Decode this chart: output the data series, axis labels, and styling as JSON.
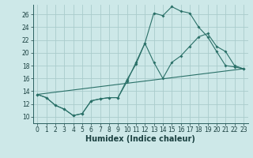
{
  "xlabel": "Humidex (Indice chaleur)",
  "bg_color": "#cde8e8",
  "grid_color": "#aacccc",
  "line_color": "#2a7068",
  "xlim": [
    -0.5,
    23.5
  ],
  "ylim": [
    9.0,
    27.5
  ],
  "xticks": [
    0,
    1,
    2,
    3,
    4,
    5,
    6,
    7,
    8,
    9,
    10,
    11,
    12,
    13,
    14,
    15,
    16,
    17,
    18,
    19,
    20,
    21,
    22,
    23
  ],
  "yticks": [
    10,
    12,
    14,
    16,
    18,
    20,
    22,
    24,
    26
  ],
  "line1_x": [
    0,
    1,
    2,
    3,
    4,
    5,
    6,
    7,
    8,
    9,
    10,
    11,
    12,
    13,
    14,
    15,
    16,
    17,
    18,
    19,
    20,
    21,
    22,
    23
  ],
  "line1_y": [
    13.5,
    13.0,
    11.8,
    11.2,
    10.2,
    10.5,
    12.5,
    12.8,
    13.0,
    13.0,
    15.5,
    18.5,
    21.5,
    26.2,
    25.8,
    27.2,
    26.5,
    26.2,
    24.0,
    22.5,
    20.2,
    18.0,
    17.8,
    17.5
  ],
  "line2_x": [
    0,
    1,
    2,
    3,
    4,
    5,
    6,
    7,
    8,
    9,
    10,
    11,
    12,
    13,
    14,
    15,
    16,
    17,
    18,
    19,
    20,
    21,
    22,
    23
  ],
  "line2_y": [
    13.5,
    13.0,
    11.8,
    11.2,
    10.2,
    10.5,
    12.5,
    12.8,
    13.0,
    13.0,
    15.8,
    18.2,
    21.5,
    18.5,
    16.0,
    18.5,
    19.5,
    21.0,
    22.5,
    23.0,
    21.0,
    20.2,
    18.0,
    17.5
  ],
  "line3_x": [
    0,
    23
  ],
  "line3_y": [
    13.5,
    17.5
  ],
  "marker_size": 2.0,
  "tick_fontsize": 5.5,
  "label_fontsize": 7.0
}
